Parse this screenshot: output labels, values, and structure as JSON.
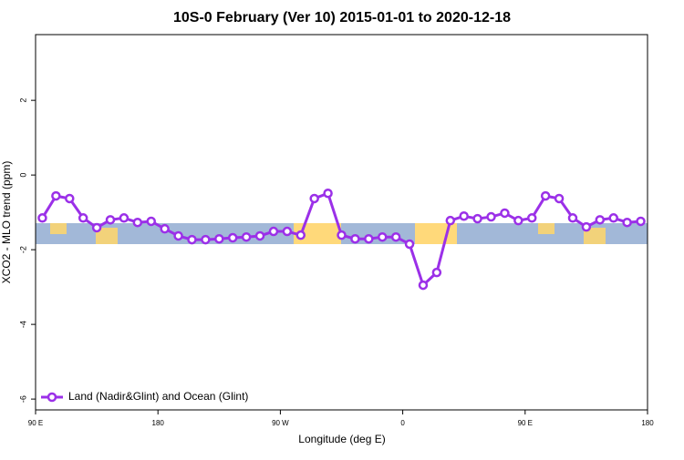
{
  "chart_data": {
    "type": "line",
    "title": "10S-0 February (Ver 10)   2015-01-01 to 2020-12-18",
    "x_label": "Longitude (deg E)",
    "y_label": "XCO2 - MLO trend (ppm)",
    "x": [
      95,
      105,
      115,
      125,
      135,
      145,
      155,
      165,
      175,
      185,
      195,
      205,
      215,
      225,
      235,
      245,
      255,
      265,
      275,
      285,
      295,
      305,
      315,
      325,
      335,
      345,
      355,
      365,
      375,
      385,
      395,
      405,
      415,
      425,
      435,
      445,
      455,
      465,
      475,
      485,
      495,
      505,
      515,
      525,
      535
    ],
    "series": [
      {
        "name": "Land (Nadir&Glint) and Ocean (Glint)",
        "color": "#9b30e8",
        "values": [
          -1.15,
          -0.56,
          -0.63,
          -1.15,
          -1.41,
          -1.2,
          -1.15,
          -1.27,
          -1.24,
          -1.44,
          -1.63,
          -1.73,
          -1.73,
          -1.71,
          -1.68,
          -1.66,
          -1.63,
          -1.51,
          -1.51,
          -1.61,
          -0.63,
          -0.49,
          -1.61,
          -1.71,
          -1.71,
          -1.66,
          -1.66,
          -1.85,
          -2.95,
          -2.61,
          -1.22,
          -1.1,
          -1.17,
          -1.12,
          -1.02,
          -1.22,
          -1.15,
          -0.56,
          -0.63,
          -1.15,
          -1.39,
          -1.2,
          -1.15,
          -1.27,
          -1.24
        ]
      }
    ],
    "xlim": [
      90,
      540
    ],
    "xticks": [
      {
        "value": 90,
        "label": "90 E"
      },
      180,
      {
        "value": 270,
        "label": "90 W"
      },
      {
        "value": 360,
        "label": "0"
      },
      {
        "value": 450,
        "label": "90 E"
      },
      {
        "value": 540,
        "label": "180"
      }
    ],
    "ylim": [
      -6.29,
      3.76
    ],
    "yticks": [
      -6,
      -4,
      -2,
      0,
      2
    ],
    "legend": "bottom-left"
  }
}
